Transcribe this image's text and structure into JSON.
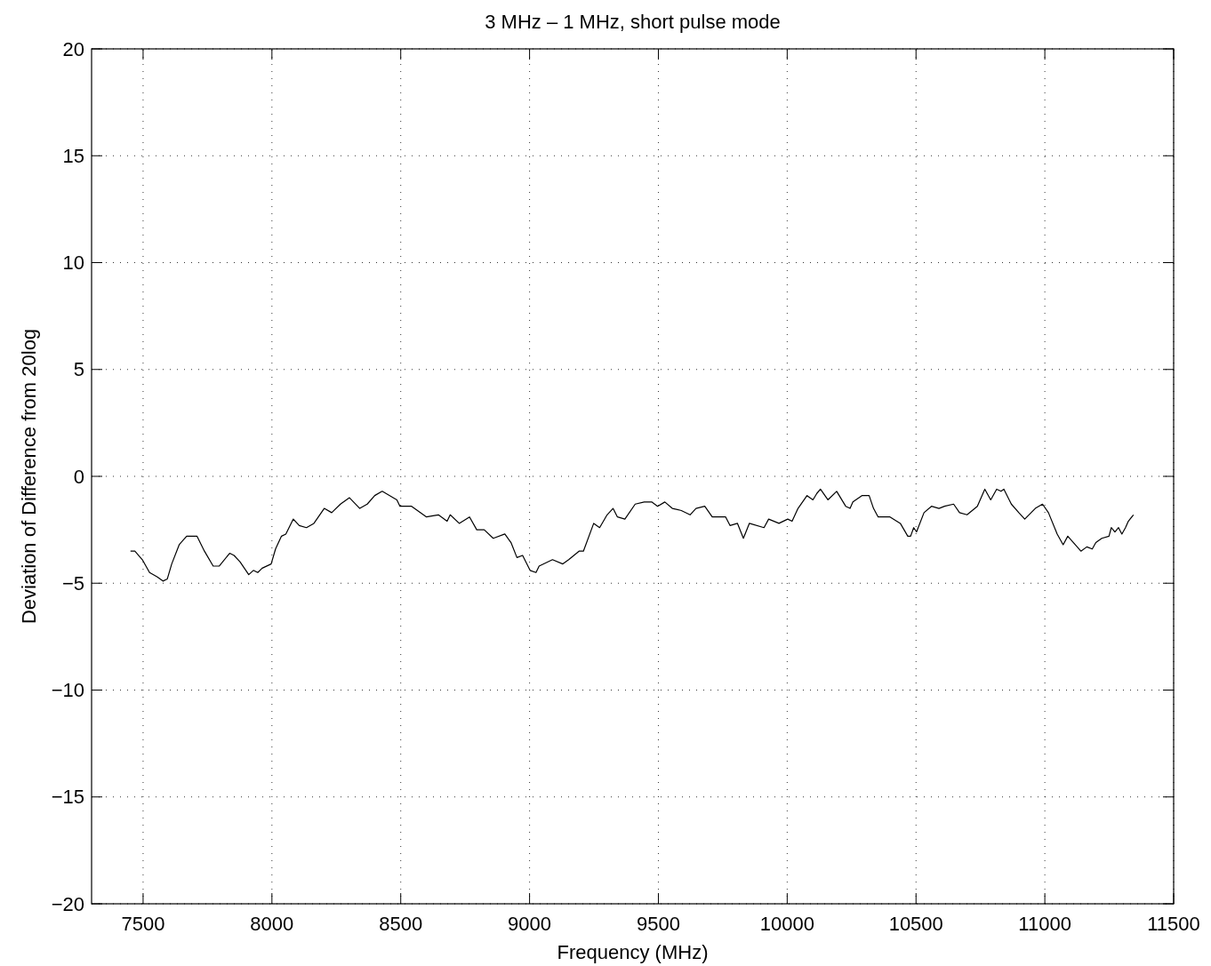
{
  "chart_data": {
    "type": "line",
    "title": "3 MHz – 1 MHz, short pulse mode",
    "xlabel": "Frequency (MHz)",
    "ylabel": "Deviation of Difference from 20log",
    "xlim": [
      7300,
      11500
    ],
    "xticks": [
      7500,
      8000,
      8500,
      9000,
      9500,
      10000,
      10500,
      11000,
      11500
    ],
    "ylim": [
      -20,
      20
    ],
    "yticks": [
      -20,
      -15,
      -10,
      -5,
      0,
      5,
      10,
      15,
      20
    ],
    "grid": true,
    "line_style": "solid",
    "marker": "none",
    "series": [
      {
        "color": "#000000",
        "x": [
          7451,
          7468,
          7497,
          7525,
          7554,
          7577,
          7594,
          7611,
          7640,
          7669,
          7709,
          7738,
          7772,
          7795,
          7836,
          7853,
          7876,
          7910,
          7928,
          7945,
          7962,
          7997,
          8014,
          8037,
          8054,
          8083,
          8106,
          8134,
          8163,
          8203,
          8232,
          8266,
          8301,
          8341,
          8370,
          8399,
          8428,
          8485,
          8497,
          8542,
          8600,
          8646,
          8680,
          8692,
          8727,
          8767,
          8795,
          8824,
          8859,
          8904,
          8928,
          8951,
          8973,
          9002,
          9025,
          9037,
          9089,
          9129,
          9152,
          9192,
          9209,
          9249,
          9272,
          9301,
          9324,
          9341,
          9370,
          9410,
          9445,
          9474,
          9497,
          9525,
          9554,
          9589,
          9623,
          9646,
          9680,
          9709,
          9761,
          9778,
          9807,
          9830,
          9853,
          9910,
          9928,
          9968,
          10002,
          10019,
          10042,
          10077,
          10100,
          10115,
          10129,
          10158,
          10192,
          10227,
          10244,
          10255,
          10290,
          10318,
          10335,
          10353,
          10399,
          10439,
          10468,
          10479,
          10491,
          10502,
          10531,
          10560,
          10589,
          10611,
          10646,
          10669,
          10698,
          10738,
          10767,
          10790,
          10813,
          10830,
          10841,
          10870,
          10899,
          10922,
          10963,
          10991,
          11014,
          11048,
          11071,
          11089,
          11140,
          11163,
          11184,
          11198,
          11221,
          11249,
          11258,
          11272,
          11286,
          11299,
          11313,
          11324,
          11344
        ],
        "values": [
          -3.5,
          -3.5,
          -3.9,
          -4.5,
          -4.7,
          -4.9,
          -4.8,
          -4.1,
          -3.2,
          -2.8,
          -2.8,
          -3.5,
          -4.2,
          -4.2,
          -3.6,
          -3.7,
          -4.0,
          -4.6,
          -4.4,
          -4.5,
          -4.3,
          -4.1,
          -3.4,
          -2.8,
          -2.7,
          -2.0,
          -2.3,
          -2.4,
          -2.2,
          -1.5,
          -1.7,
          -1.3,
          -1.0,
          -1.5,
          -1.3,
          -0.9,
          -0.7,
          -1.1,
          -1.4,
          -1.4,
          -1.9,
          -1.8,
          -2.1,
          -1.8,
          -2.2,
          -1.9,
          -2.5,
          -2.5,
          -2.9,
          -2.7,
          -3.1,
          -3.8,
          -3.7,
          -4.4,
          -4.5,
          -4.2,
          -3.9,
          -4.1,
          -3.9,
          -3.5,
          -3.5,
          -2.2,
          -2.4,
          -1.8,
          -1.5,
          -1.9,
          -2.0,
          -1.3,
          -1.2,
          -1.2,
          -1.4,
          -1.2,
          -1.5,
          -1.6,
          -1.8,
          -1.5,
          -1.4,
          -1.9,
          -1.9,
          -2.3,
          -2.2,
          -2.9,
          -2.2,
          -2.4,
          -2.0,
          -2.2,
          -2.0,
          -2.1,
          -1.5,
          -0.9,
          -1.1,
          -0.8,
          -0.6,
          -1.1,
          -0.7,
          -1.4,
          -1.5,
          -1.2,
          -0.9,
          -0.9,
          -1.5,
          -1.9,
          -1.9,
          -2.2,
          -2.8,
          -2.8,
          -2.4,
          -2.6,
          -1.7,
          -1.4,
          -1.5,
          -1.4,
          -1.3,
          -1.7,
          -1.8,
          -1.4,
          -0.6,
          -1.1,
          -0.6,
          -0.7,
          -0.6,
          -1.3,
          -1.7,
          -2.0,
          -1.5,
          -1.3,
          -1.7,
          -2.7,
          -3.2,
          -2.8,
          -3.5,
          -3.3,
          -3.4,
          -3.1,
          -2.9,
          -2.8,
          -2.4,
          -2.6,
          -2.4,
          -2.7,
          -2.4,
          -2.1,
          -1.8
        ]
      }
    ]
  }
}
